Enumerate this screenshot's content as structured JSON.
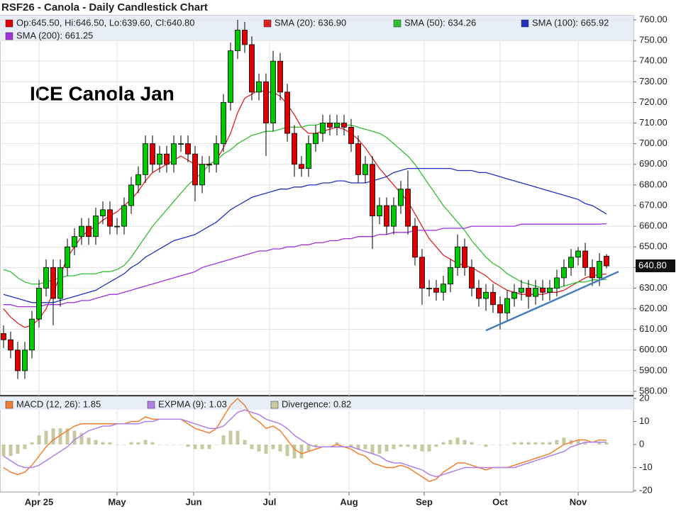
{
  "chart_data": [
    {
      "type": "candlestick",
      "title": "RSF26 - Canola - Daily Candlestick Chart",
      "annotation": "ICE Canola Jan",
      "ohlc_label": "Op:645.50, Hi:646.50, Lo:639.60, Cl:640.80",
      "up_color": "#00c800",
      "down_color": "#dd0000",
      "open": [
        608,
        605,
        600,
        590,
        600,
        615,
        630,
        640,
        625,
        640,
        650,
        655,
        660,
        655,
        665,
        668,
        660,
        660,
        670,
        680,
        685,
        700,
        690,
        695,
        690,
        700,
        700,
        695,
        680,
        690,
        690,
        700,
        720,
        745,
        755,
        748,
        725,
        730,
        710,
        740,
        725,
        705,
        690,
        688,
        700,
        705,
        710,
        708,
        710,
        708,
        700,
        685,
        690,
        665,
        670,
        660,
        670,
        678,
        660,
        645,
        630,
        630,
        628,
        632,
        640,
        650,
        640,
        630,
        625,
        628,
        622,
        618,
        625,
        628,
        630,
        626,
        630,
        628,
        630,
        635,
        640,
        645,
        648,
        640,
        635,
        645.5
      ],
      "high": [
        612,
        609,
        604,
        604,
        619,
        634,
        644,
        644,
        644,
        654,
        659,
        664,
        664,
        669,
        672,
        672,
        664,
        674,
        684,
        689,
        704,
        704,
        699,
        699,
        704,
        704,
        704,
        699,
        694,
        694,
        704,
        724,
        749,
        760,
        759,
        752,
        734,
        734,
        745,
        744,
        729,
        709,
        694,
        704,
        709,
        714,
        714,
        714,
        714,
        712,
        704,
        694,
        694,
        674,
        674,
        674,
        682,
        687,
        664,
        649,
        634,
        634,
        636,
        644,
        656,
        654,
        644,
        634,
        632,
        632,
        626,
        629,
        632,
        634,
        634,
        634,
        634,
        634,
        639,
        644,
        649,
        650,
        652,
        644,
        647,
        646.5
      ],
      "low": [
        601,
        596,
        586,
        586,
        596,
        611,
        626,
        612,
        621,
        636,
        646,
        651,
        651,
        651,
        661,
        656,
        656,
        656,
        666,
        676,
        681,
        686,
        686,
        686,
        686,
        696,
        691,
        672,
        676,
        686,
        686,
        696,
        716,
        741,
        744,
        721,
        721,
        694,
        706,
        721,
        701,
        684,
        684,
        684,
        696,
        701,
        704,
        704,
        704,
        696,
        681,
        681,
        649,
        661,
        656,
        656,
        666,
        656,
        641,
        622,
        626,
        624,
        624,
        628,
        636,
        636,
        626,
        621,
        619,
        618,
        610,
        614,
        621,
        624,
        620,
        622,
        624,
        624,
        626,
        631,
        636,
        641,
        636,
        631,
        631,
        639.6
      ],
      "close": [
        605,
        600,
        590,
        600,
        615,
        630,
        640,
        625,
        640,
        650,
        655,
        660,
        655,
        665,
        668,
        660,
        660,
        670,
        680,
        685,
        700,
        690,
        695,
        690,
        700,
        700,
        695,
        680,
        690,
        690,
        700,
        720,
        745,
        755,
        748,
        725,
        730,
        710,
        740,
        725,
        705,
        690,
        688,
        700,
        705,
        710,
        708,
        710,
        708,
        700,
        685,
        690,
        665,
        670,
        660,
        670,
        678,
        660,
        645,
        630,
        630,
        628,
        632,
        640,
        650,
        640,
        630,
        625,
        628,
        622,
        618,
        625,
        628,
        630,
        626,
        630,
        628,
        630,
        635,
        640,
        645,
        648,
        640,
        635,
        643,
        640.8
      ],
      "series": [
        {
          "name": "SMA (20): 636.90",
          "color": "#e02020",
          "values": [
            620,
            616,
            613,
            611,
            612,
            615,
            620,
            628,
            636,
            645,
            650,
            655,
            658,
            660,
            663,
            665,
            667,
            670,
            673,
            677,
            682,
            686,
            688,
            690,
            692,
            694,
            692,
            690,
            690,
            690,
            692,
            698,
            705,
            715,
            722,
            724,
            726,
            725,
            725,
            723,
            719,
            714,
            708,
            705,
            705,
            706,
            707,
            708,
            707,
            705,
            702,
            698,
            693,
            688,
            684,
            680,
            676,
            672,
            666,
            660,
            654,
            650,
            646,
            644,
            642,
            641,
            640,
            638,
            636,
            633,
            631,
            629,
            628,
            627,
            627,
            627,
            627,
            628,
            628,
            629,
            631,
            633,
            635,
            636,
            636.5,
            636.9
          ]
        },
        {
          "name": "SMA (50): 634.26",
          "color": "#30c030",
          "values": [
            639,
            638,
            635,
            633,
            632,
            632,
            633,
            634,
            635,
            636,
            636,
            637,
            637,
            637,
            638,
            638,
            639,
            641,
            645,
            650,
            655,
            660,
            664,
            668,
            672,
            676,
            680,
            683,
            686,
            690,
            692,
            695,
            697,
            700,
            702,
            704,
            705,
            706,
            706,
            707,
            708,
            708,
            708,
            709,
            709,
            710,
            710,
            710,
            709,
            709,
            708,
            707,
            706,
            705,
            703,
            700,
            697,
            694,
            690,
            685,
            680,
            675,
            670,
            666,
            662,
            658,
            653,
            649,
            645,
            642,
            640,
            637,
            635,
            633,
            632,
            631,
            630,
            630,
            630,
            631,
            632,
            633,
            633,
            634,
            634,
            634.26
          ]
        },
        {
          "name": "SMA (100): 665.92",
          "color": "#2030c0",
          "values": [
            627,
            626,
            625,
            624,
            623,
            623,
            623,
            623,
            624,
            625,
            626,
            627,
            628,
            629,
            631,
            633,
            635,
            637,
            640,
            642,
            645,
            647,
            649,
            651,
            653,
            654,
            655,
            656,
            658,
            660,
            662,
            665,
            668,
            670,
            672,
            674,
            675,
            676,
            677,
            678,
            678,
            679,
            679,
            680,
            680,
            681,
            681,
            682,
            682,
            681,
            681,
            681,
            682,
            683,
            684,
            686,
            687,
            688,
            688,
            688,
            688,
            688,
            688,
            688,
            687,
            687,
            687,
            686,
            686,
            685,
            684,
            683,
            682,
            681,
            680,
            679,
            678,
            677,
            676,
            675,
            674,
            673,
            671,
            670,
            668,
            665.92
          ]
        },
        {
          "name": "SMA (200): 661.25",
          "color": "#a030e0",
          "values": [
            622,
            622,
            621,
            621,
            621,
            621,
            622,
            622,
            622,
            623,
            623,
            624,
            624,
            625,
            626,
            627,
            627,
            628,
            629,
            630,
            631,
            632,
            633,
            634,
            635,
            636,
            637,
            638,
            640,
            641,
            642,
            643,
            644,
            645,
            646,
            647,
            648,
            648,
            649,
            649,
            650,
            650,
            651,
            651,
            652,
            652,
            653,
            653,
            654,
            654,
            655,
            655,
            655,
            656,
            656,
            657,
            657,
            657,
            658,
            658,
            658,
            658,
            659,
            659,
            659,
            659,
            660,
            660,
            660,
            660,
            660,
            660,
            660,
            661,
            661,
            661,
            661,
            661,
            661,
            661,
            661,
            661,
            661,
            661,
            661,
            661.25
          ]
        }
      ],
      "trendline": {
        "x": [
          68,
          86.7
        ],
        "y": [
          609.5,
          638
        ]
      },
      "last_price": {
        "value": 640.8,
        "label": "640.80"
      },
      "xlim": [
        -0.5,
        88.8
      ],
      "ylim": [
        580,
        760
      ],
      "yticks": [
        {
          "value": 580,
          "label": "580.00"
        },
        {
          "value": 590,
          "label": "590.00"
        },
        {
          "value": 600,
          "label": "600.00"
        },
        {
          "value": 610,
          "label": "610.00"
        },
        {
          "value": 620,
          "label": "620.00"
        },
        {
          "value": 630,
          "label": "630.00"
        },
        {
          "value": 640,
          "label": "640.00"
        },
        {
          "value": 650,
          "label": "650.00"
        },
        {
          "value": 660,
          "label": "660.00"
        },
        {
          "value": 670,
          "label": "670.00"
        },
        {
          "value": 680,
          "label": "680.00"
        },
        {
          "value": 690,
          "label": "690.00"
        },
        {
          "value": 700,
          "label": "700.00"
        },
        {
          "value": 710,
          "label": "710.00"
        },
        {
          "value": 720,
          "label": "720.00"
        },
        {
          "value": 730,
          "label": "730.00"
        },
        {
          "value": 740,
          "label": "740.00"
        },
        {
          "value": 750,
          "label": "750.00"
        },
        {
          "value": 760,
          "label": "760.00"
        }
      ],
      "grid": true
    },
    {
      "type": "macd",
      "series": [
        {
          "name": "MACD (12, 26): 1.85",
          "color": "#f08030",
          "style": "line",
          "values": [
            -10,
            -12,
            -13,
            -12,
            -9,
            -5,
            -1,
            2,
            4,
            6,
            8,
            9,
            9,
            9,
            9,
            9,
            9,
            9,
            10,
            10,
            12,
            11,
            11,
            11,
            11,
            11,
            9,
            7,
            6,
            5,
            7,
            12,
            17,
            20,
            17,
            12,
            10,
            7,
            8,
            6,
            2,
            -2,
            -4,
            -3,
            -2,
            -1,
            -1,
            0,
            -1,
            -2,
            -4,
            -5,
            -8,
            -9,
            -10,
            -10,
            -9,
            -10,
            -12,
            -14,
            -16,
            -15,
            -12,
            -10,
            -8,
            -8,
            -9,
            -10,
            -11,
            -10,
            -10,
            -10,
            -9,
            -8,
            -7,
            -6,
            -5,
            -4,
            -2,
            0,
            1,
            2,
            2,
            1,
            2,
            1.85
          ]
        },
        {
          "name": "EXPMA (9): 1.03",
          "color": "#b080e8",
          "style": "line",
          "values": [
            -5,
            -7,
            -9,
            -10,
            -10,
            -9,
            -7,
            -5,
            -3,
            -1,
            2,
            4,
            6,
            7,
            8,
            8,
            9,
            9,
            9,
            9,
            10,
            10,
            11,
            11,
            11,
            11,
            10,
            9,
            8,
            7,
            7,
            8,
            11,
            14,
            15,
            14,
            13,
            11,
            10,
            9,
            7,
            4,
            2,
            0,
            -1,
            -1,
            -1,
            -1,
            -1,
            -1,
            -2,
            -3,
            -4,
            -5,
            -7,
            -8,
            -8,
            -9,
            -10,
            -11,
            -13,
            -14,
            -13,
            -12,
            -11,
            -10,
            -10,
            -10,
            -10,
            -10,
            -10,
            -10,
            -10,
            -9,
            -8,
            -7,
            -6,
            -5,
            -4,
            -3,
            -1,
            0,
            1,
            1,
            1,
            1.03
          ]
        },
        {
          "name": "Divergence: 0.82",
          "color": "#c8c8a0",
          "style": "bar",
          "values": [
            -5,
            -5,
            -4,
            -2,
            1,
            4,
            6,
            7,
            7,
            7,
            6,
            5,
            3,
            2,
            1,
            1,
            0,
            0,
            1,
            1,
            2,
            1,
            0,
            0,
            0,
            0,
            -1,
            -2,
            -2,
            -2,
            0,
            4,
            6,
            6,
            2,
            -2,
            -3,
            -4,
            -2,
            -3,
            -5,
            -6,
            -6,
            -3,
            -1,
            0,
            0,
            1,
            0,
            -1,
            -2,
            -2,
            -4,
            -4,
            -3,
            -2,
            -1,
            -1,
            -2,
            -3,
            -3,
            -1,
            1,
            2,
            3,
            2,
            1,
            0,
            -1,
            0,
            0,
            0,
            1,
            1,
            1,
            1,
            1,
            1,
            2,
            3,
            2,
            2,
            1,
            0,
            1,
            0.82
          ]
        }
      ],
      "xlim": [
        -0.5,
        88.8
      ],
      "xticks": [
        {
          "value": 5,
          "label": "Apr 25"
        },
        {
          "value": 16,
          "label": "May"
        },
        {
          "value": 26.8,
          "label": "Jun"
        },
        {
          "value": 37.5,
          "label": "Jul"
        },
        {
          "value": 48.7,
          "label": "Aug"
        },
        {
          "value": 59.3,
          "label": "Sep"
        },
        {
          "value": 70,
          "label": "Oct"
        },
        {
          "value": 81,
          "label": "Nov"
        }
      ],
      "ylim": [
        -20,
        20
      ],
      "yticks": [
        -20,
        -10,
        0,
        10,
        20
      ],
      "grid": true
    }
  ]
}
